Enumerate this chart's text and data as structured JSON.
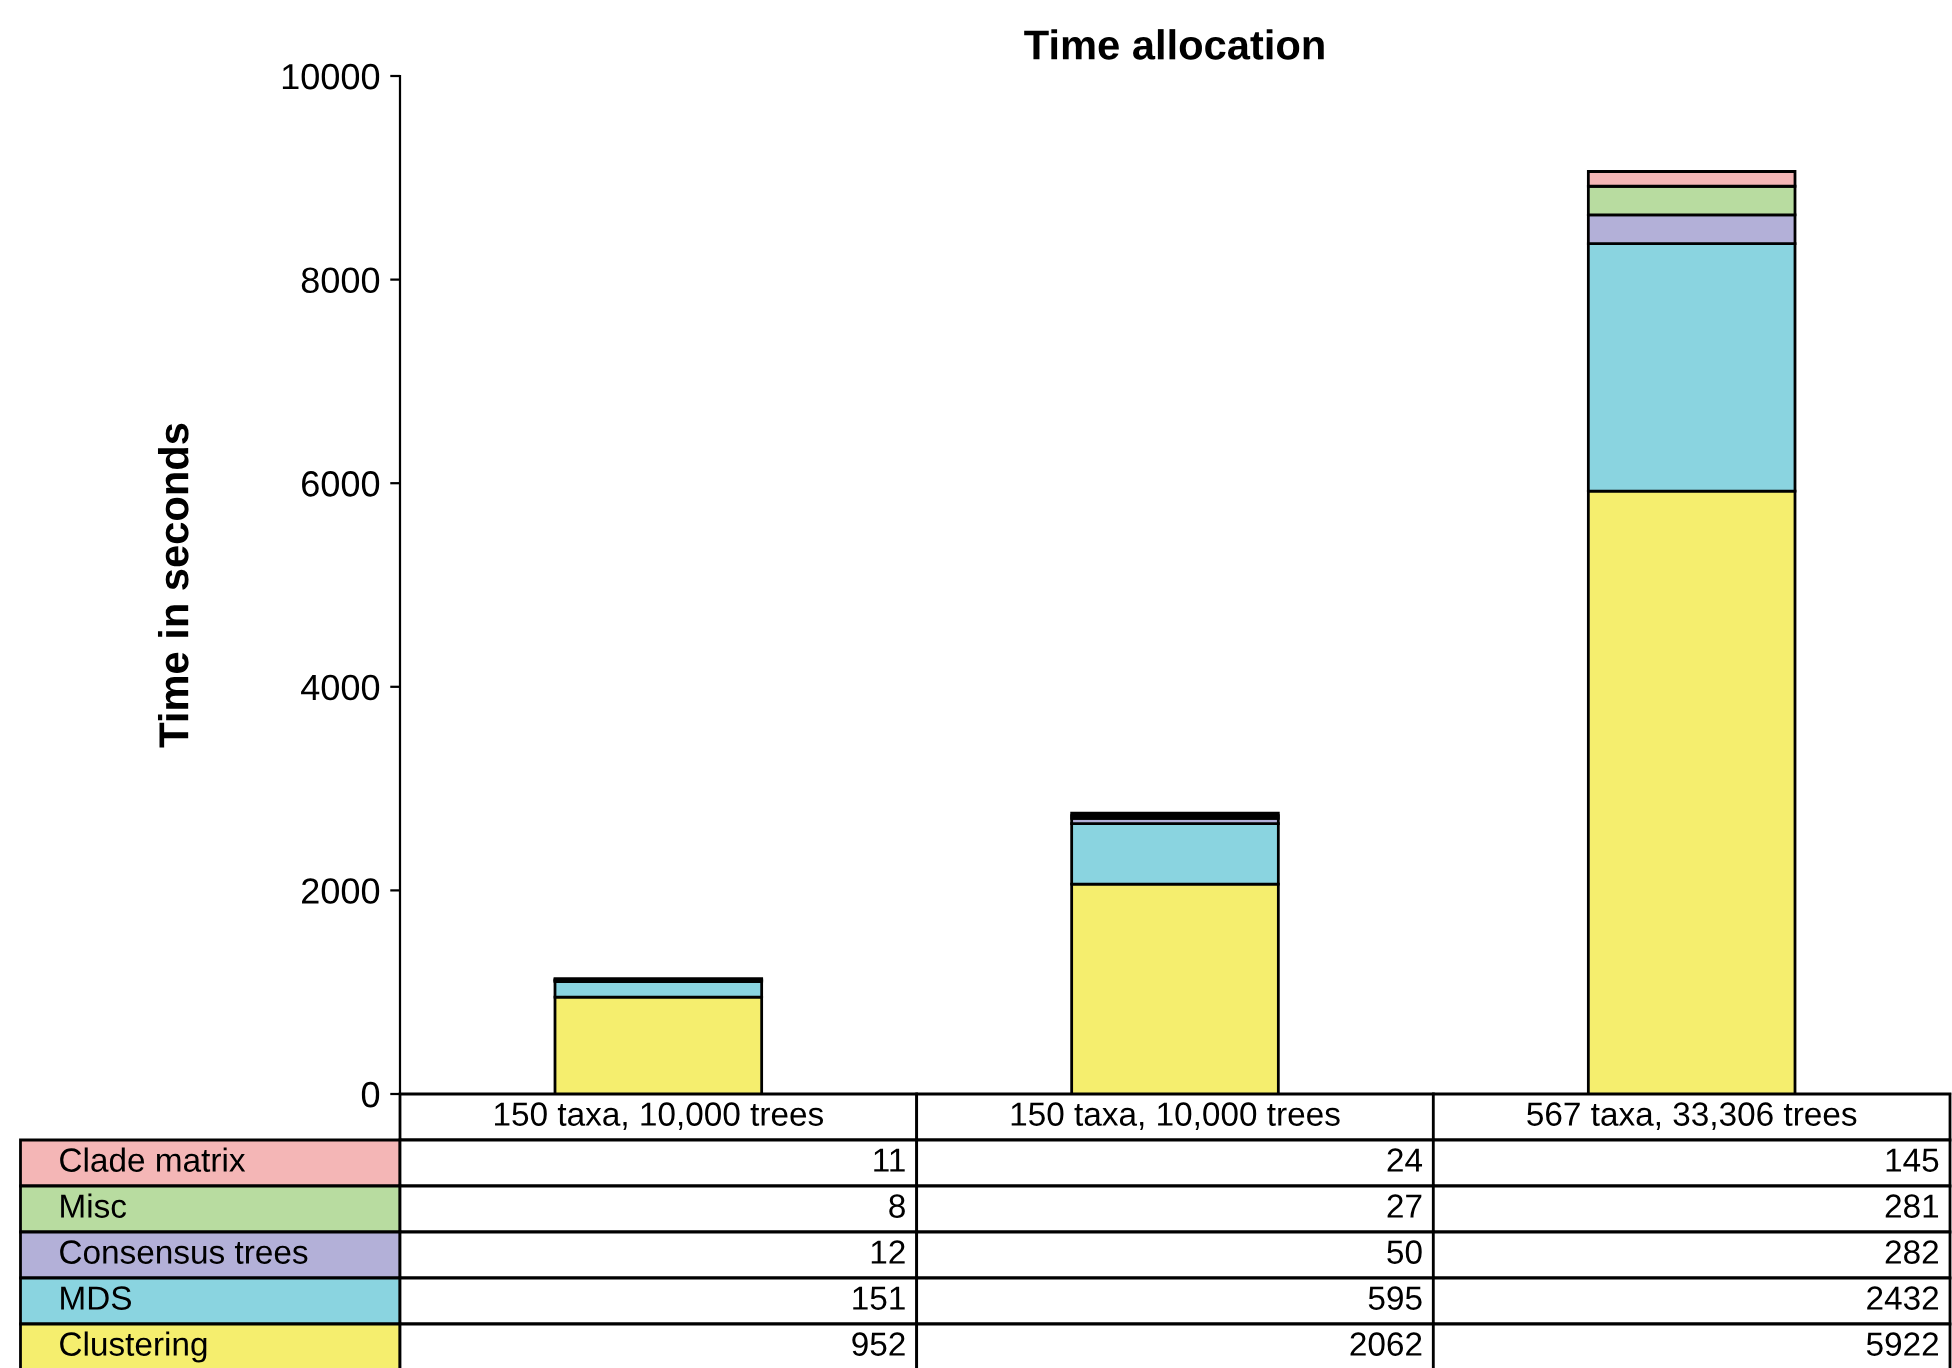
{
  "chart_data": {
    "type": "bar",
    "stacked": true,
    "title": "Time allocation",
    "ylabel": "Time in seconds",
    "categories": [
      "150 taxa, 10,000 trees",
      "150 taxa, 10,000 trees",
      "567 taxa, 33,306 trees"
    ],
    "series": [
      {
        "name": "Clustering",
        "color": "#f5ee6e",
        "values": [
          952,
          2062,
          5922
        ]
      },
      {
        "name": "MDS",
        "color": "#8ad4e0",
        "values": [
          151,
          595,
          2432
        ]
      },
      {
        "name": "Consensus trees",
        "color": "#b3b0d8",
        "values": [
          12,
          50,
          282
        ]
      },
      {
        "name": "Misc",
        "color": "#b8dca0",
        "values": [
          8,
          27,
          281
        ]
      },
      {
        "name": "Clade matrix",
        "color": "#f4b6b6",
        "values": [
          11,
          24,
          145
        ]
      }
    ],
    "ylim": [
      0,
      10000
    ],
    "yticks": [
      0,
      2000,
      4000,
      6000,
      8000,
      10000
    ],
    "grid": false,
    "legend": "bottom",
    "data_labels": true
  }
}
